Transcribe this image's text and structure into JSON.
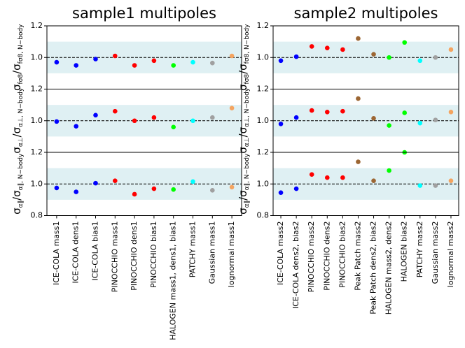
{
  "chart_data": [
    {
      "type": "scatter",
      "title": "sample1 multipoles",
      "categories": [
        "ICE-COLA mass1",
        "ICE-COLA dens1",
        "ICE-COLA bias1",
        "PINOCCHIO mass1",
        "PINOCCHIO dens1",
        "PINOCCHIO bias1",
        "HALOGEN mass1, dens1, bias1",
        "PATCHY mass1",
        "Gaussian mass1",
        "lognormal mass1"
      ],
      "colors": [
        "#0000ff",
        "#0000ff",
        "#0000ff",
        "#ff0000",
        "#ff0000",
        "#ff0000",
        "#00ff00",
        "#00ffff",
        "#a0a0a0",
        "#f4a460"
      ],
      "band": [
        0.9,
        1.1
      ],
      "hline": 1,
      "panels": [
        {
          "ylabel": [
            {
              "text": "σ",
              "sub": "fσ8"
            },
            {
              "text": "/σ",
              "sub": "fσ8, N−body"
            }
          ],
          "ylim": [
            0.8,
            1.2
          ],
          "yticks": [
            {
              "value": 1.2,
              "label": "1.2"
            },
            {
              "value": 1,
              "label": "1.0"
            }
          ],
          "values": [
            0.97,
            0.95,
            0.99,
            1.01,
            0.95,
            0.98,
            0.95,
            0.97,
            0.965,
            1.01
          ]
        },
        {
          "ylabel": [
            {
              "text": "σ",
              "sub": "α⊥"
            },
            {
              "text": "/σ",
              "sub": "α⊥, N−body"
            }
          ],
          "ylim": [
            0.8,
            1.2
          ],
          "yticks": [
            {
              "value": 1.2,
              "label": "1.2"
            },
            {
              "value": 1,
              "label": "1.0"
            }
          ],
          "values": [
            0.995,
            0.965,
            1.035,
            1.06,
            1.0,
            1.02,
            0.96,
            1.0,
            1.02,
            1.08
          ]
        },
        {
          "ylabel": [
            {
              "text": "σ",
              "sub": "α∥"
            },
            {
              "text": "/σ",
              "sub": "α∥, N−body"
            }
          ],
          "ylim": [
            0.8,
            1.2
          ],
          "yticks": [
            {
              "value": 1.2,
              "label": "1.2"
            },
            {
              "value": 1,
              "label": "1.0"
            },
            {
              "value": 0.8,
              "label": "0.8"
            }
          ],
          "values": [
            0.975,
            0.95,
            1.005,
            1.02,
            0.935,
            0.97,
            0.965,
            1.015,
            0.96,
            0.98
          ]
        }
      ]
    },
    {
      "type": "scatter",
      "title": "sample2 multipoles",
      "categories": [
        "ICE-COLA mass2",
        "ICE-COLA dens2, bias2",
        "PINOCCHIO mass2",
        "PINOCCHIO dens2",
        "PINOCCHIO bias2",
        "Peak Patch mass2",
        "Peak Patch dens2, bias2",
        "HALOGEN mass2, dens2",
        "HALOGEN bias2",
        "PATCHY mass2",
        "Gaussian mass2",
        "lognormal mass2"
      ],
      "colors": [
        "#0000ff",
        "#0000ff",
        "#ff0000",
        "#ff0000",
        "#ff0000",
        "#9c6633",
        "#9c6633",
        "#00ff00",
        "#00ff00",
        "#00ffff",
        "#a0a0a0",
        "#f4a460"
      ],
      "band": [
        0.9,
        1.1
      ],
      "hline": 1,
      "panels": [
        {
          "ylabel": [
            {
              "text": "σ",
              "sub": "fσ8"
            },
            {
              "text": "/σ",
              "sub": "fσ8, N−body"
            }
          ],
          "ylim": [
            0.8,
            1.2
          ],
          "yticks": [
            {
              "value": 1.2,
              "label": "1.2"
            },
            {
              "value": 1,
              "label": "1.0"
            }
          ],
          "values": [
            0.98,
            1.005,
            1.07,
            1.06,
            1.05,
            1.12,
            1.02,
            1.0,
            1.095,
            0.98,
            1.0,
            1.05
          ]
        },
        {
          "ylabel": [
            {
              "text": "σ",
              "sub": "α⊥"
            },
            {
              "text": "/σ",
              "sub": "α⊥, N−body"
            }
          ],
          "ylim": [
            0.8,
            1.2
          ],
          "yticks": [
            {
              "value": 1.2,
              "label": "1.2"
            },
            {
              "value": 1,
              "label": "1.0"
            }
          ],
          "values": [
            0.98,
            1.02,
            1.065,
            1.055,
            1.06,
            1.14,
            1.015,
            0.97,
            1.05,
            0.985,
            1.005,
            1.055
          ]
        },
        {
          "ylabel": [
            {
              "text": "σ",
              "sub": "α∥"
            },
            {
              "text": "/σ",
              "sub": "α∥, N−body"
            }
          ],
          "ylim": [
            0.8,
            1.2
          ],
          "yticks": [
            {
              "value": 1.2,
              "label": "1.2"
            },
            {
              "value": 1,
              "label": "1.0"
            },
            {
              "value": 0.8,
              "label": "0.8"
            }
          ],
          "values": [
            0.945,
            0.97,
            1.06,
            1.04,
            1.04,
            1.14,
            1.02,
            1.085,
            1.2,
            0.99,
            0.99,
            1.02
          ]
        }
      ]
    }
  ]
}
